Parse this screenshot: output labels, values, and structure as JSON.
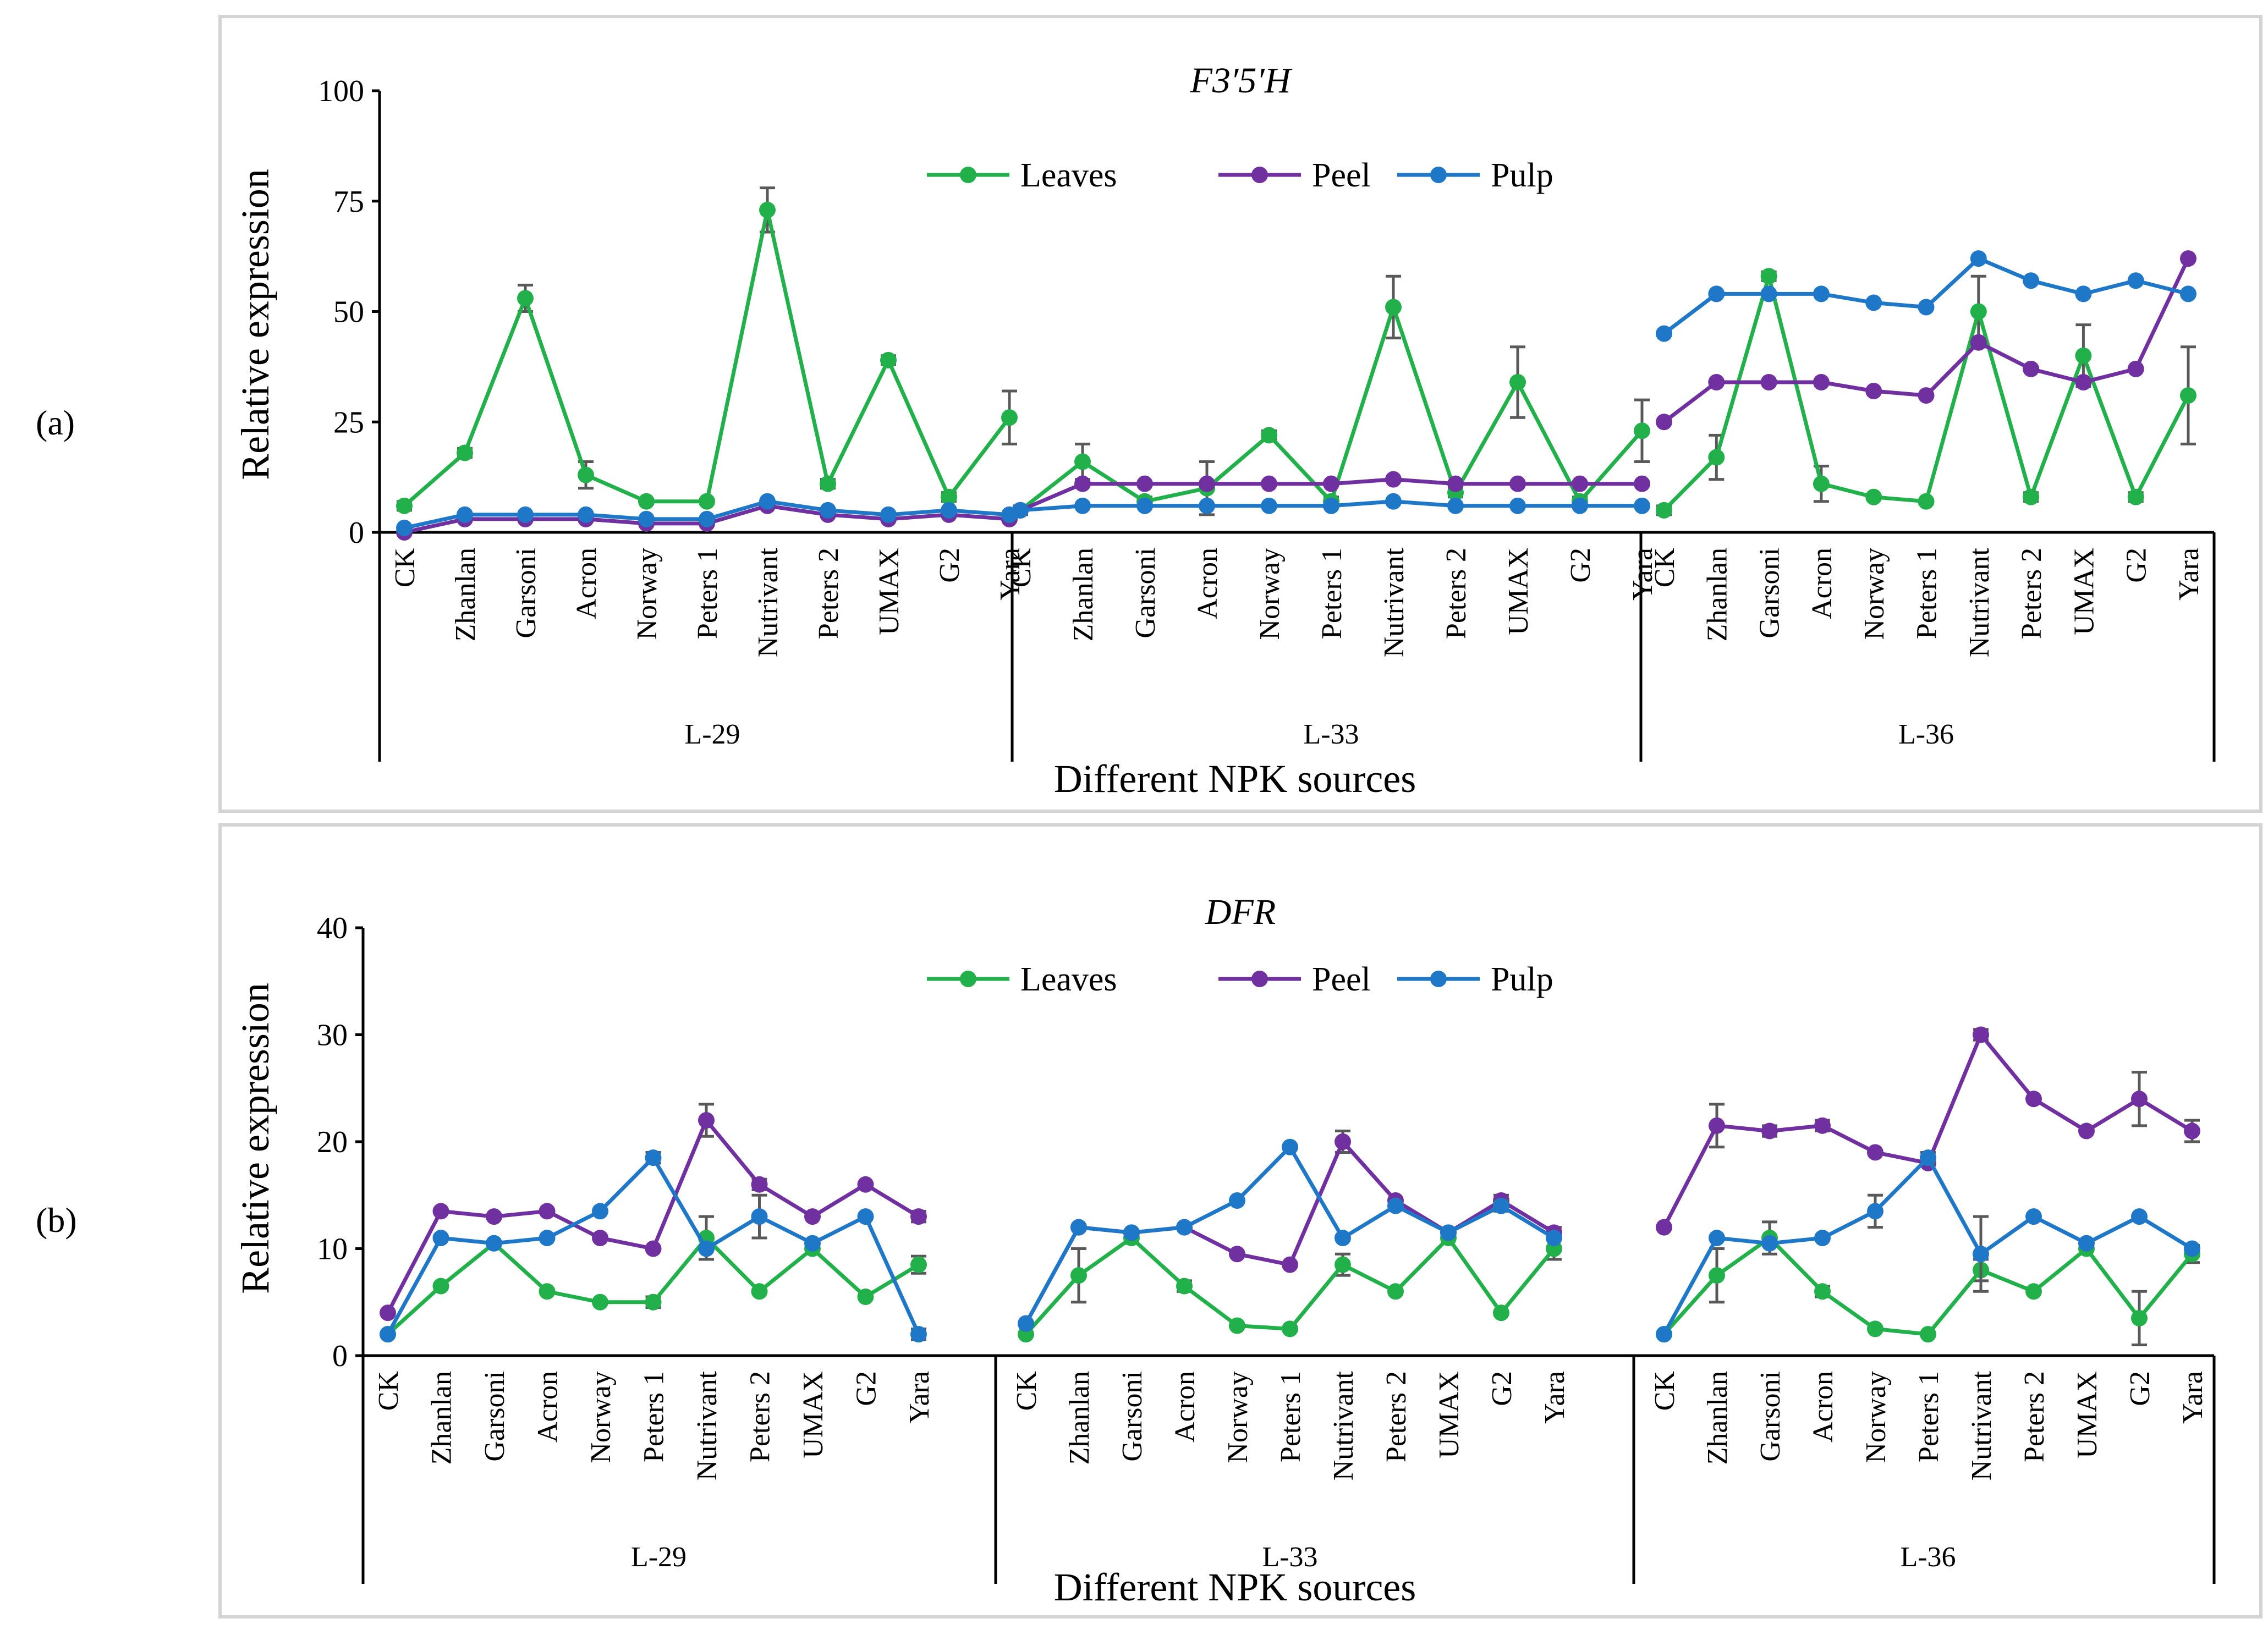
{
  "colors": {
    "Leaves": "#22b04b",
    "Peel": "#7030a0",
    "Pulp": "#1f77c8"
  },
  "categories": [
    "CK",
    "Zhanlan",
    "Garsoni",
    "Acron",
    "Norway",
    "Peters 1",
    "Nutrivant",
    "Peters 2",
    "UMAX",
    "G2",
    "Yara"
  ],
  "groups": [
    "L-29",
    "L-33",
    "L-36"
  ],
  "chart_data": [
    {
      "type": "line",
      "panel_label": "(a)",
      "title": "F3′5′H",
      "xlabel": "Different NPK sources",
      "ylabel": "Relative expression",
      "ylim": [
        0,
        100
      ],
      "yticks": [
        0,
        25,
        50,
        75,
        100
      ],
      "legend": [
        "Leaves",
        "Peel",
        "Pulp"
      ],
      "legend_position": "top-center",
      "series": [
        {
          "name": "Leaves",
          "values": [
            [
              6,
              18,
              53,
              13,
              7,
              7,
              73,
              11,
              39,
              8,
              26
            ],
            [
              5,
              16,
              7,
              10,
              22,
              7,
              51,
              9,
              34,
              7,
              23
            ],
            [
              5,
              17,
              58,
              11,
              8,
              7,
              50,
              8,
              40,
              8,
              31
            ]
          ],
          "errors": [
            [
              1,
              1,
              3,
              3,
              0.5,
              0.5,
              5,
              1,
              1,
              1,
              6
            ],
            [
              1,
              4,
              1,
              6,
              1,
              1,
              7,
              1,
              8,
              1,
              7
            ],
            [
              1,
              5,
              1,
              4,
              0.5,
              0.5,
              8,
              1,
              7,
              1,
              11
            ]
          ]
        },
        {
          "name": "Peel",
          "values": [
            [
              0,
              3,
              3,
              3,
              2,
              2,
              6,
              4,
              3,
              4,
              3
            ],
            [
              5,
              11,
              11,
              11,
              11,
              11,
              12,
              11,
              11,
              11,
              11
            ],
            [
              25,
              34,
              34,
              34,
              32,
              31,
              43,
              37,
              34,
              37,
              62
            ]
          ],
          "errors": [
            [
              0,
              0,
              0,
              0,
              0,
              0,
              0,
              0,
              0,
              0,
              0
            ],
            [
              0,
              0,
              0,
              0,
              0,
              0,
              0,
              0,
              0,
              0,
              0
            ],
            [
              0,
              0,
              0,
              0,
              0,
              0,
              0,
              0,
              0,
              0,
              0
            ]
          ]
        },
        {
          "name": "Pulp",
          "values": [
            [
              1,
              4,
              4,
              4,
              3,
              3,
              7,
              5,
              4,
              5,
              4
            ],
            [
              5,
              6,
              6,
              6,
              6,
              6,
              7,
              6,
              6,
              6,
              6
            ],
            [
              45,
              54,
              54,
              54,
              52,
              51,
              62,
              57,
              54,
              57,
              54
            ]
          ],
          "errors": [
            [
              0,
              0,
              0,
              0,
              0,
              0,
              0,
              0,
              0,
              0,
              0
            ],
            [
              0,
              0,
              0,
              0,
              0,
              0,
              0,
              0,
              0,
              0,
              0
            ],
            [
              0,
              0,
              0,
              0,
              0,
              0,
              0,
              0,
              0,
              0,
              0
            ]
          ]
        }
      ]
    },
    {
      "type": "line",
      "panel_label": "(b)",
      "title": "DFR",
      "xlabel": "Different NPK sources",
      "ylabel": "Relative expression",
      "ylim": [
        0,
        40
      ],
      "yticks": [
        0,
        10,
        20,
        30,
        40
      ],
      "legend": [
        "Leaves",
        "Peel",
        "Pulp"
      ],
      "legend_position": "top-center",
      "series": [
        {
          "name": "Leaves",
          "values": [
            [
              2,
              6.5,
              10.5,
              6,
              5,
              5,
              11,
              6,
              10,
              5.5,
              8.5
            ],
            [
              2,
              7.5,
              11,
              6.5,
              2.8,
              2.5,
              8.5,
              6,
              11,
              4,
              10
            ],
            [
              2,
              7.5,
              11,
              6,
              2.5,
              2,
              8,
              6,
              10,
              3.5,
              9.5
            ]
          ],
          "errors": [
            [
              0.3,
              0.3,
              0.3,
              0.3,
              0.3,
              0.5,
              2,
              0.3,
              0.3,
              0.3,
              0.8
            ],
            [
              0.3,
              2.5,
              0.5,
              0.5,
              0.3,
              0.3,
              1,
              0.3,
              0.3,
              0.3,
              1
            ],
            [
              0.3,
              2.5,
              1.5,
              0.5,
              0.3,
              0.3,
              1,
              0.3,
              0.3,
              2.5,
              0.8
            ]
          ]
        },
        {
          "name": "Peel",
          "values": [
            [
              4,
              13.5,
              13,
              13.5,
              11,
              10,
              22,
              16,
              13,
              16,
              13
            ],
            [
              3,
              12,
              11.5,
              12,
              9.5,
              8.5,
              20,
              14.5,
              11.5,
              14.5,
              11.5
            ],
            [
              12,
              21.5,
              21,
              21.5,
              19,
              18,
              30,
              24,
              21,
              24,
              21
            ]
          ],
          "errors": [
            [
              0,
              0,
              0,
              0,
              0,
              0,
              1.5,
              0.5,
              0,
              0,
              0.5
            ],
            [
              0,
              0,
              0,
              0,
              0,
              0,
              1,
              0,
              0,
              0.5,
              0.5
            ],
            [
              0,
              2,
              0.5,
              0.5,
              0,
              0,
              0.5,
              0,
              0,
              2.5,
              1
            ]
          ]
        },
        {
          "name": "Pulp",
          "values": [
            [
              2,
              11,
              10.5,
              11,
              13.5,
              18.5,
              10,
              13,
              10.5,
              13,
              2
            ],
            [
              3,
              12,
              11.5,
              12,
              14.5,
              19.5,
              11,
              14,
              11.5,
              14,
              11
            ],
            [
              2,
              11,
              10.5,
              11,
              13.5,
              18.5,
              9.5,
              13,
              10.5,
              13,
              10
            ]
          ],
          "errors": [
            [
              0,
              0,
              0,
              0,
              0,
              0.5,
              0,
              2,
              0,
              0,
              0.5
            ],
            [
              0,
              0,
              0,
              0,
              0,
              0,
              0,
              0,
              0,
              0.5,
              0
            ],
            [
              0,
              0,
              0,
              0,
              1.5,
              0.5,
              3.5,
              0,
              0,
              0,
              0
            ]
          ]
        }
      ]
    }
  ]
}
